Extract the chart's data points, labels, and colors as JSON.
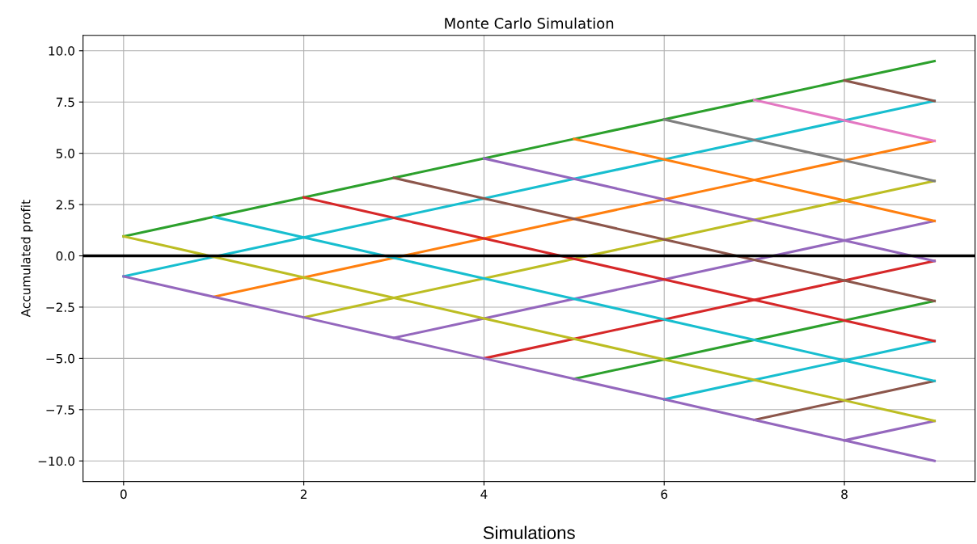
{
  "chart_data": {
    "type": "line",
    "title": "Monte Carlo Simulation",
    "xlabel": "Simulations",
    "ylabel": "Accumulated profit",
    "x": [
      0,
      1,
      2,
      3,
      4,
      5,
      6,
      7,
      8,
      9
    ],
    "series": [
      {
        "color": "#2ca02c",
        "values": [
          0.95,
          1.9,
          2.85,
          3.8,
          4.75,
          5.7,
          6.65,
          7.6,
          8.55,
          9.5
        ]
      },
      {
        "color": "#17becf",
        "values": [
          -1,
          -0.05,
          0.9,
          1.85,
          2.8,
          3.75,
          4.7,
          5.65,
          6.6,
          7.55
        ]
      },
      {
        "color": "#ff7f0e",
        "values": [
          null,
          -2,
          -1.05,
          -0.1,
          0.85,
          1.8,
          2.75,
          3.7,
          4.65,
          5.6
        ]
      },
      {
        "color": "#bcbd22",
        "values": [
          null,
          null,
          -3,
          -2.05,
          -1.1,
          -0.15,
          0.8,
          1.75,
          2.7,
          3.65
        ]
      },
      {
        "color": "#9467bd",
        "values": [
          null,
          null,
          null,
          -4,
          -3.05,
          -2.1,
          -1.15,
          -0.2,
          0.75,
          1.7
        ]
      },
      {
        "color": "#d62728",
        "values": [
          null,
          null,
          null,
          null,
          -5,
          -4.05,
          -3.1,
          -2.15,
          -1.2,
          -0.25
        ]
      },
      {
        "color": "#2ca02c",
        "values": [
          null,
          null,
          null,
          null,
          null,
          -6,
          -5.05,
          -4.1,
          -3.15,
          -2.2
        ]
      },
      {
        "color": "#17becf",
        "values": [
          null,
          null,
          null,
          null,
          null,
          null,
          -7,
          -6.05,
          -5.1,
          -4.15
        ]
      },
      {
        "color": "#8c564b",
        "values": [
          null,
          null,
          null,
          null,
          null,
          null,
          null,
          -8,
          -7.05,
          -6.1
        ]
      },
      {
        "color": "#9467bd",
        "values": [
          null,
          null,
          null,
          null,
          null,
          null,
          null,
          null,
          -9,
          -8.05
        ]
      },
      {
        "color": "#9467bd",
        "values": [
          -1,
          -2,
          -3,
          -4,
          -5,
          -6,
          -7,
          -8,
          -9,
          -10
        ]
      },
      {
        "color": "#bcbd22",
        "values": [
          0.95,
          -0.05,
          -1.05,
          -2.05,
          -3.05,
          -4.05,
          -5.05,
          -6.05,
          -7.05,
          -8.05
        ]
      },
      {
        "color": "#17becf",
        "values": [
          null,
          1.9,
          0.9,
          -0.1,
          -1.1,
          -2.1,
          -3.1,
          -4.1,
          -5.1,
          -6.1
        ]
      },
      {
        "color": "#d62728",
        "values": [
          null,
          null,
          2.85,
          1.85,
          0.85,
          -0.15,
          -1.15,
          -2.15,
          -3.15,
          -4.15
        ]
      },
      {
        "color": "#8c564b",
        "values": [
          null,
          null,
          null,
          3.8,
          2.8,
          1.8,
          0.8,
          -0.2,
          -1.2,
          -2.2
        ]
      },
      {
        "color": "#9467bd",
        "values": [
          null,
          null,
          null,
          null,
          4.75,
          3.75,
          2.75,
          1.75,
          0.75,
          -0.25
        ]
      },
      {
        "color": "#ff7f0e",
        "values": [
          null,
          null,
          null,
          null,
          null,
          5.7,
          4.7,
          3.7,
          2.7,
          1.7
        ]
      },
      {
        "color": "#7f7f7f",
        "values": [
          null,
          null,
          null,
          null,
          null,
          null,
          6.65,
          5.65,
          4.65,
          3.65
        ]
      },
      {
        "color": "#e377c2",
        "values": [
          null,
          null,
          null,
          null,
          null,
          null,
          null,
          7.6,
          6.6,
          5.6
        ]
      },
      {
        "color": "#8c564b",
        "values": [
          null,
          null,
          null,
          null,
          null,
          null,
          null,
          null,
          8.55,
          7.55
        ]
      }
    ],
    "xlim": [
      -0.45,
      9.45
    ],
    "xticks": [
      0,
      2,
      4,
      6,
      8
    ],
    "ylim": [
      -11,
      10.75
    ],
    "yticks": [
      {
        "value": -10,
        "label": "−10.0"
      },
      {
        "value": -7.5,
        "label": "−7.5"
      },
      {
        "value": -5,
        "label": "−5.0"
      },
      {
        "value": -2.5,
        "label": "−2.5"
      },
      {
        "value": 0,
        "label": "0.0"
      },
      {
        "value": 2.5,
        "label": "2.5"
      },
      {
        "value": 5,
        "label": "5.0"
      },
      {
        "value": 7.5,
        "label": "7.5"
      },
      {
        "value": 10,
        "label": "10.0"
      }
    ],
    "ref_lines": [
      {
        "axis": "y",
        "value": 0,
        "color": "#000000"
      }
    ],
    "grid": true
  }
}
